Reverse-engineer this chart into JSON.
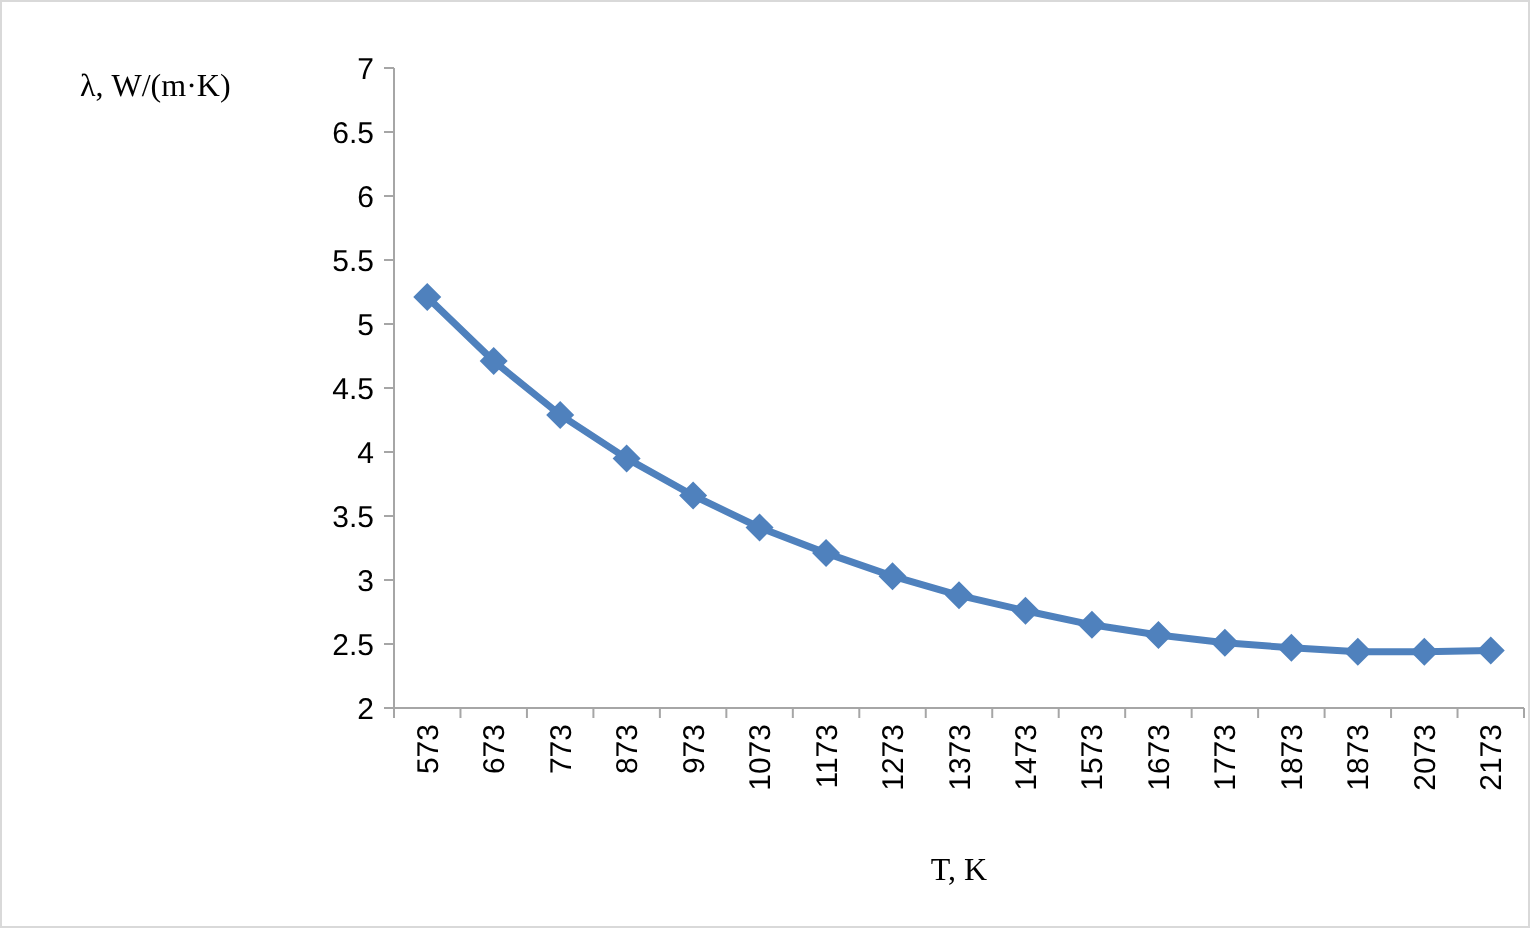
{
  "chart_data": {
    "type": "line",
    "xlabel": "T, K",
    "ylabel": "λ, W/(m·K)",
    "categories": [
      "573",
      "673",
      "773",
      "873",
      "973",
      "1073",
      "1173",
      "1273",
      "1373",
      "1473",
      "1573",
      "1673",
      "1773",
      "1873",
      "1873",
      "2073",
      "2173"
    ],
    "series": [
      {
        "color": "#4f81bd",
        "values": [
          5.21,
          4.71,
          4.29,
          3.95,
          3.66,
          3.41,
          3.21,
          3.03,
          2.88,
          2.76,
          2.65,
          2.57,
          2.51,
          2.47,
          2.44,
          2.44,
          2.45
        ]
      }
    ],
    "ylim": [
      2,
      7
    ],
    "yticks": [
      2,
      2.5,
      3,
      3.5,
      4,
      4.5,
      5,
      5.5,
      6,
      6.5,
      7
    ],
    "grid": false,
    "marker": "diamond",
    "line_style": "solid"
  }
}
